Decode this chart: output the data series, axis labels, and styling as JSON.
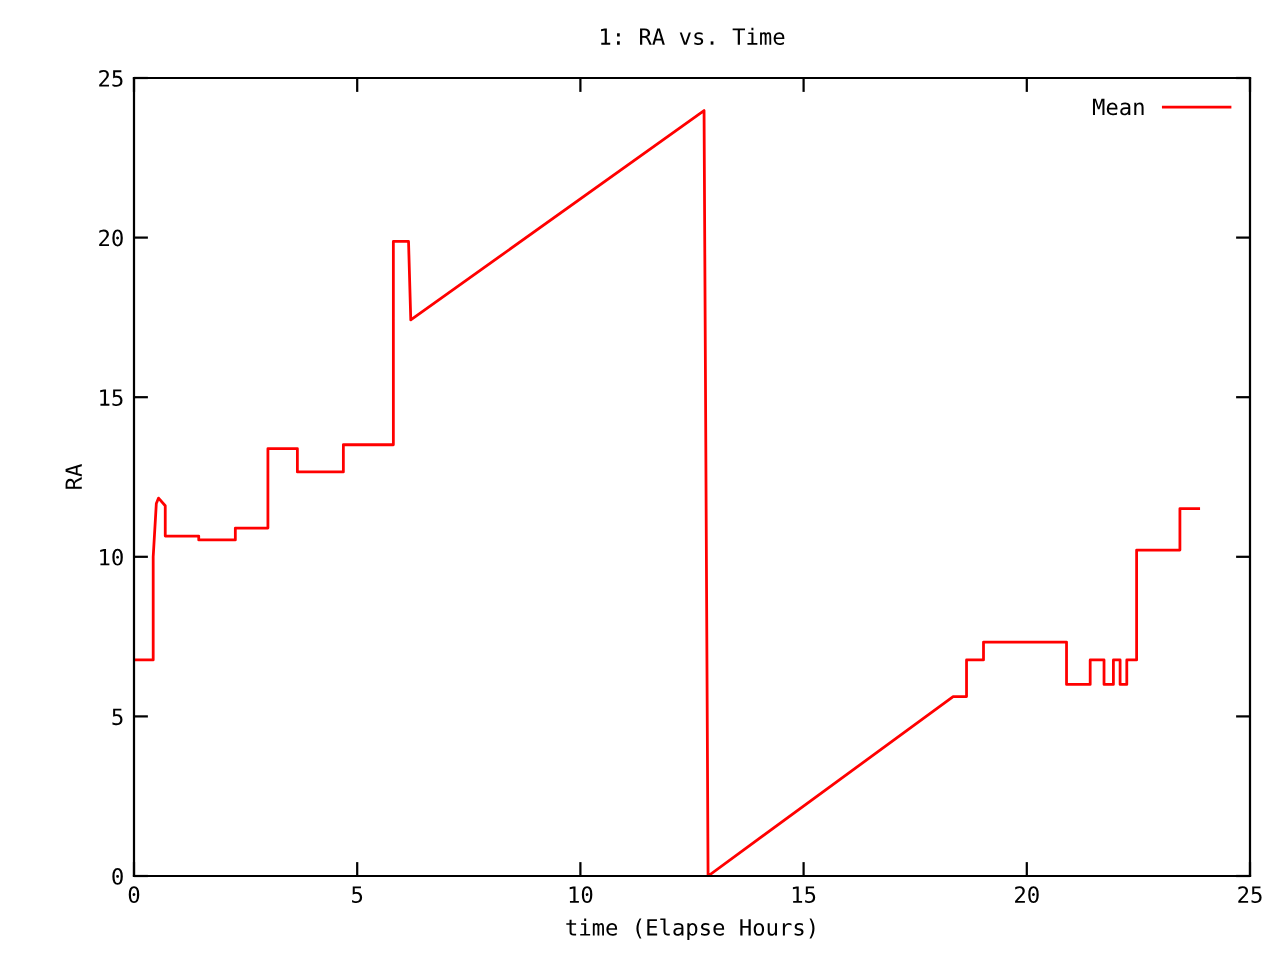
{
  "chart_data": {
    "type": "line",
    "title": "1: RA vs. Time",
    "xlabel": "time (Elapse Hours)",
    "ylabel": "RA",
    "series": [
      {
        "name": "Mean",
        "color": "#ff0000",
        "x": [
          0,
          0.43,
          0.43,
          0.5,
          0.55,
          0.7,
          0.7,
          1.45,
          1.45,
          2.27,
          2.27,
          3.0,
          3.0,
          3.66,
          3.66,
          4.69,
          4.69,
          5.81,
          5.81,
          6.15,
          6.2,
          12.77,
          12.86,
          18.35,
          18.65,
          18.65,
          19.03,
          19.03,
          20.89,
          20.89,
          21.42,
          21.42,
          21.73,
          21.73,
          21.94,
          21.94,
          22.09,
          22.09,
          22.24,
          22.24,
          22.46,
          22.46,
          23.43,
          23.43,
          23.85
        ],
        "values": [
          6.77,
          6.77,
          10.0,
          11.67,
          11.84,
          11.6,
          10.65,
          10.65,
          10.53,
          10.53,
          10.9,
          10.9,
          13.39,
          13.39,
          12.66,
          12.66,
          13.51,
          13.51,
          19.88,
          19.88,
          17.42,
          23.98,
          0,
          5.62,
          5.62,
          6.77,
          6.77,
          7.33,
          7.33,
          6.0,
          6.0,
          6.77,
          6.77,
          6.0,
          6.0,
          6.77,
          6.77,
          6.0,
          6.0,
          6.77,
          6.77,
          10.21,
          10.21,
          11.51,
          11.51
        ]
      }
    ],
    "xlim": [
      0,
      25
    ],
    "ylim": [
      0,
      25
    ],
    "xticks": [
      0,
      5,
      10,
      15,
      20,
      25
    ],
    "yticks": [
      0,
      5,
      10,
      15,
      20,
      25
    ],
    "grid": false,
    "legend": "top right",
    "marker": "none",
    "line_style": "solid"
  }
}
